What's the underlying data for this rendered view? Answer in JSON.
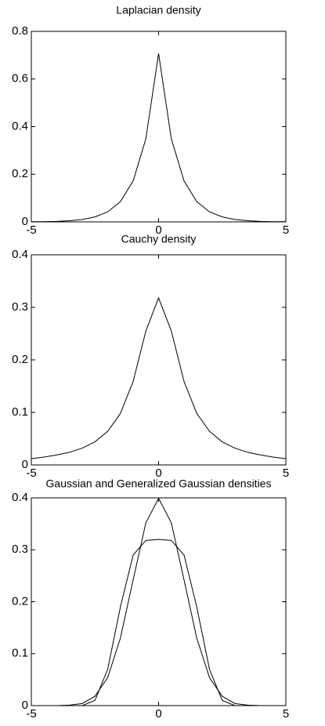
{
  "chart_data": [
    {
      "type": "line",
      "title": "Laplacian density",
      "x": [
        -5,
        -4.5,
        -4,
        -3.5,
        -3,
        -2.5,
        -2,
        -1.5,
        -1,
        -0.5,
        0,
        0.5,
        1,
        1.5,
        2,
        2.5,
        3,
        3.5,
        4,
        4.5,
        5
      ],
      "series": [
        {
          "color": "#000000",
          "values": [
            0.001,
            0.001,
            0.002,
            0.005,
            0.01,
            0.021,
            0.042,
            0.085,
            0.172,
            0.349,
            0.707,
            0.349,
            0.172,
            0.085,
            0.042,
            0.021,
            0.01,
            0.005,
            0.002,
            0.001,
            0.001
          ]
        }
      ],
      "xlim": [
        -5,
        5
      ],
      "ylim": [
        0,
        0.8
      ],
      "xticks": [
        -5,
        0,
        5
      ],
      "yticks": [
        0,
        0.2,
        0.4,
        0.6,
        0.8
      ]
    },
    {
      "type": "line",
      "title": "Cauchy density",
      "x": [
        -5,
        -4.5,
        -4,
        -3.5,
        -3,
        -2.5,
        -2,
        -1.5,
        -1,
        -0.5,
        0,
        0.5,
        1,
        1.5,
        2,
        2.5,
        3,
        3.5,
        4,
        4.5,
        5
      ],
      "series": [
        {
          "color": "#000000",
          "values": [
            0.012,
            0.015,
            0.019,
            0.024,
            0.032,
            0.044,
            0.064,
            0.098,
            0.159,
            0.255,
            0.318,
            0.255,
            0.159,
            0.098,
            0.064,
            0.044,
            0.032,
            0.024,
            0.019,
            0.015,
            0.012
          ]
        }
      ],
      "xlim": [
        -5,
        5
      ],
      "ylim": [
        0,
        0.4
      ],
      "xticks": [
        -5,
        0,
        5
      ],
      "yticks": [
        0,
        0.1,
        0.2,
        0.3,
        0.4
      ]
    },
    {
      "type": "line",
      "title": "Gaussian and Generalized Gaussian densities",
      "x": [
        -5,
        -4.5,
        -4,
        -3.5,
        -3,
        -2.5,
        -2,
        -1.5,
        -1,
        -0.5,
        0,
        0.5,
        1,
        1.5,
        2,
        2.5,
        3,
        3.5,
        4,
        4.5,
        5
      ],
      "series": [
        {
          "color": "#000000",
          "values": [
            0,
            0,
            0,
            0.001,
            0.004,
            0.018,
            0.054,
            0.13,
            0.242,
            0.352,
            0.399,
            0.352,
            0.242,
            0.13,
            0.054,
            0.018,
            0.004,
            0.001,
            0,
            0,
            0
          ]
        },
        {
          "color": "#000000",
          "values": [
            0,
            0,
            0,
            0,
            0,
            0.01,
            0.07,
            0.19,
            0.29,
            0.318,
            0.32,
            0.318,
            0.29,
            0.19,
            0.07,
            0.01,
            0,
            0,
            0,
            0,
            0
          ]
        }
      ],
      "xlim": [
        -5,
        5
      ],
      "ylim": [
        0,
        0.4
      ],
      "xticks": [
        -5,
        0,
        5
      ],
      "yticks": [
        0,
        0.1,
        0.2,
        0.3,
        0.4
      ]
    }
  ]
}
